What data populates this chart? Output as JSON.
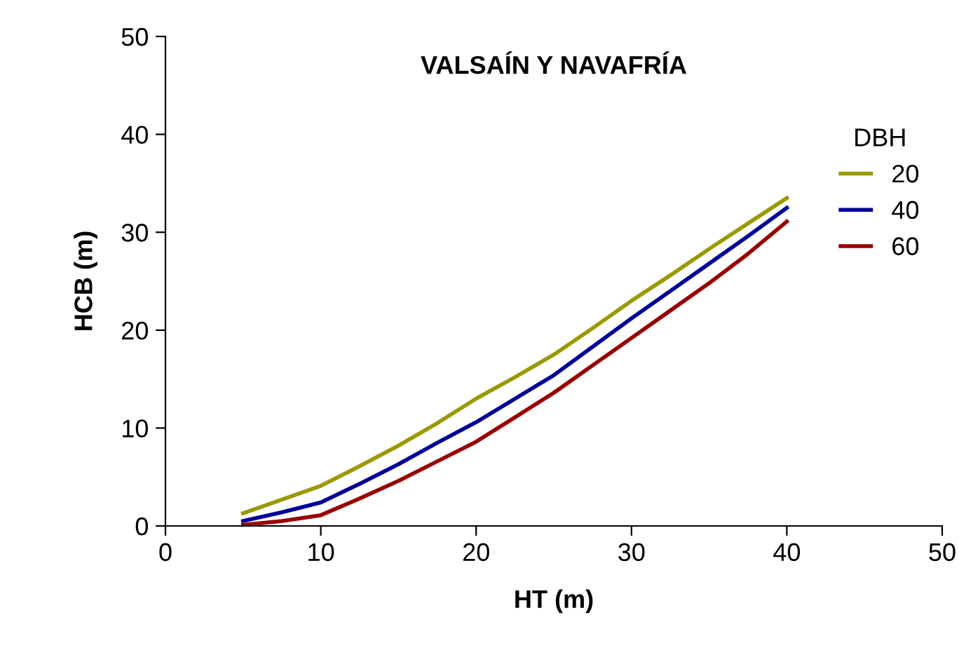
{
  "chart_data": {
    "type": "line",
    "title": "VALSAÍN Y NAVAFRÍA",
    "xlabel": "HT (m)",
    "ylabel": "HCB (m)",
    "legend_title": "DBH",
    "x": [
      5,
      7.5,
      10,
      12.5,
      15,
      17.5,
      20,
      22.5,
      25,
      27.5,
      30,
      32.5,
      35,
      37.5,
      40
    ],
    "series": [
      {
        "name": "20",
        "color": "#999900",
        "values": [
          1.3,
          2.7,
          4.1,
          6.1,
          8.2,
          10.5,
          13.0,
          15.2,
          17.5,
          20.2,
          23.0,
          25.6,
          28.3,
          30.9,
          33.5
        ]
      },
      {
        "name": "40",
        "color": "#000099",
        "values": [
          0.5,
          1.4,
          2.4,
          4.3,
          6.3,
          8.5,
          10.6,
          13.0,
          15.4,
          18.3,
          21.2,
          24.0,
          26.8,
          29.6,
          32.5
        ]
      },
      {
        "name": "60",
        "color": "#990000",
        "values": [
          0.1,
          0.5,
          1.1,
          2.8,
          4.6,
          6.6,
          8.6,
          11.1,
          13.6,
          16.4,
          19.2,
          22.0,
          24.8,
          27.8,
          31.1
        ]
      }
    ],
    "xlim": [
      0,
      50
    ],
    "ylim": [
      0,
      50
    ],
    "xticks": [
      0,
      10,
      20,
      30,
      40,
      50
    ],
    "yticks": [
      0,
      10,
      20,
      30,
      40,
      50
    ],
    "grid": false,
    "legend": "top right",
    "marker": "none",
    "line_style": "solid"
  }
}
